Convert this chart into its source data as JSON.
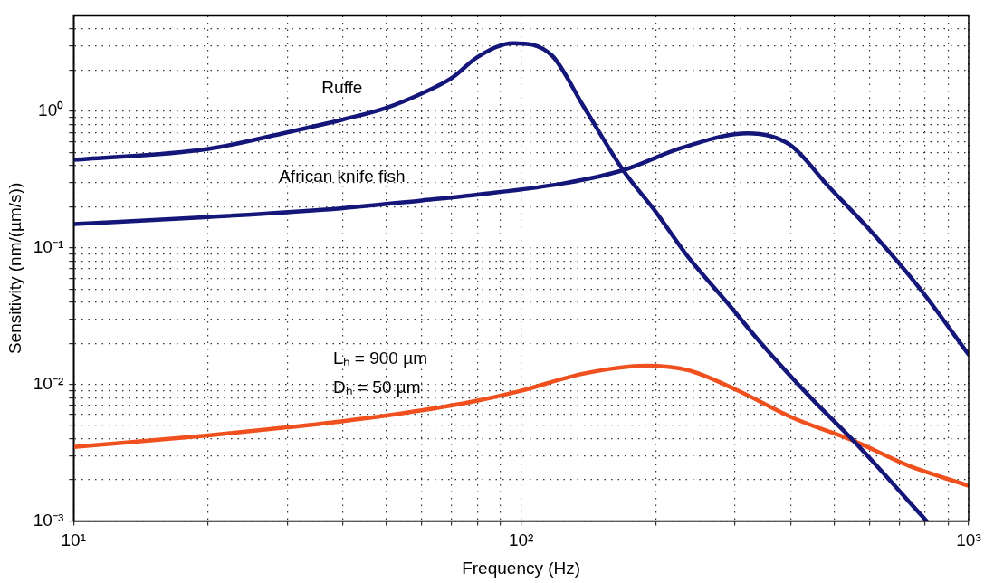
{
  "chart_data": {
    "type": "line",
    "xlabel": "Frequency (Hz)",
    "ylabel": "Sensitivity (nm/(µm/s))",
    "log": "xy",
    "grid": true,
    "line_style": "solid",
    "marker": "none",
    "legend": false,
    "xlim": [
      10,
      1000
    ],
    "ylim": [
      0.001,
      5
    ],
    "xticks": [
      {
        "value": 10,
        "label": "10¹"
      },
      {
        "value": 20,
        "label": null
      },
      {
        "value": 30,
        "label": null
      },
      {
        "value": 40,
        "label": null
      },
      {
        "value": 50,
        "label": null
      },
      {
        "value": 60,
        "label": null
      },
      {
        "value": 70,
        "label": null
      },
      {
        "value": 80,
        "label": null
      },
      {
        "value": 90,
        "label": null
      },
      {
        "value": 100,
        "label": "10²"
      },
      {
        "value": 200,
        "label": null
      },
      {
        "value": 300,
        "label": null
      },
      {
        "value": 400,
        "label": null
      },
      {
        "value": 500,
        "label": null
      },
      {
        "value": 600,
        "label": null
      },
      {
        "value": 700,
        "label": null
      },
      {
        "value": 800,
        "label": null
      },
      {
        "value": 900,
        "label": null
      },
      {
        "value": 1000,
        "label": "10³"
      }
    ],
    "yticks": [
      {
        "value": 0.001,
        "label": "10⁻³"
      },
      {
        "value": 0.002,
        "label": null
      },
      {
        "value": 0.003,
        "label": null
      },
      {
        "value": 0.004,
        "label": null
      },
      {
        "value": 0.005,
        "label": null
      },
      {
        "value": 0.006,
        "label": null
      },
      {
        "value": 0.007,
        "label": null
      },
      {
        "value": 0.008,
        "label": null
      },
      {
        "value": 0.009,
        "label": null
      },
      {
        "value": 0.01,
        "label": "10⁻²"
      },
      {
        "value": 0.02,
        "label": null
      },
      {
        "value": 0.03,
        "label": null
      },
      {
        "value": 0.04,
        "label": null
      },
      {
        "value": 0.05,
        "label": null
      },
      {
        "value": 0.06,
        "label": null
      },
      {
        "value": 0.07,
        "label": null
      },
      {
        "value": 0.08,
        "label": null
      },
      {
        "value": 0.09,
        "label": null
      },
      {
        "value": 0.1,
        "label": "10⁻¹"
      },
      {
        "value": 0.2,
        "label": null
      },
      {
        "value": 0.3,
        "label": null
      },
      {
        "value": 0.4,
        "label": null
      },
      {
        "value": 0.5,
        "label": null
      },
      {
        "value": 0.6,
        "label": null
      },
      {
        "value": 0.7,
        "label": null
      },
      {
        "value": 0.8,
        "label": null
      },
      {
        "value": 0.9,
        "label": null
      },
      {
        "value": 1,
        "label": "10⁰"
      },
      {
        "value": 2,
        "label": null
      },
      {
        "value": 3,
        "label": null
      },
      {
        "value": 4,
        "label": null
      }
    ],
    "series": [
      {
        "name": "Ruffe",
        "color": "#14167a",
        "x": [
          10,
          20,
          30,
          40,
          50,
          60,
          70,
          80,
          96,
          117,
          138,
          169,
          200,
          236,
          289,
          341,
          446,
          553,
          805
        ],
        "values": [
          0.44,
          0.53,
          0.7,
          0.87,
          1.06,
          1.35,
          1.75,
          2.5,
          3.15,
          2.57,
          1.08,
          0.37,
          0.183,
          0.086,
          0.0395,
          0.0206,
          0.00785,
          0.00386,
          0.001
        ]
      },
      {
        "name": "African knife fish",
        "color": "#14167a",
        "x": [
          10,
          20,
          40,
          60,
          80,
          125,
          169,
          229,
          321,
          398,
          487,
          605,
          779,
          1000
        ],
        "values": [
          0.149,
          0.168,
          0.195,
          0.222,
          0.245,
          0.297,
          0.37,
          0.54,
          0.69,
          0.57,
          0.28,
          0.132,
          0.05,
          0.0165
        ]
      },
      {
        "color": "#f0501e",
        "x": [
          10,
          20,
          30,
          40,
          60,
          80,
          99,
          138,
          190,
          236,
          303,
          409,
          553,
          736,
          1000
        ],
        "values": [
          0.00348,
          0.00423,
          0.00484,
          0.00538,
          0.00645,
          0.0076,
          0.0089,
          0.012,
          0.0137,
          0.0127,
          0.0091,
          0.0056,
          0.00386,
          0.00253,
          0.00181
        ]
      }
    ],
    "annotations": [
      "Lₕ = 900 µm",
      "Dₕ = 50 µm"
    ]
  }
}
